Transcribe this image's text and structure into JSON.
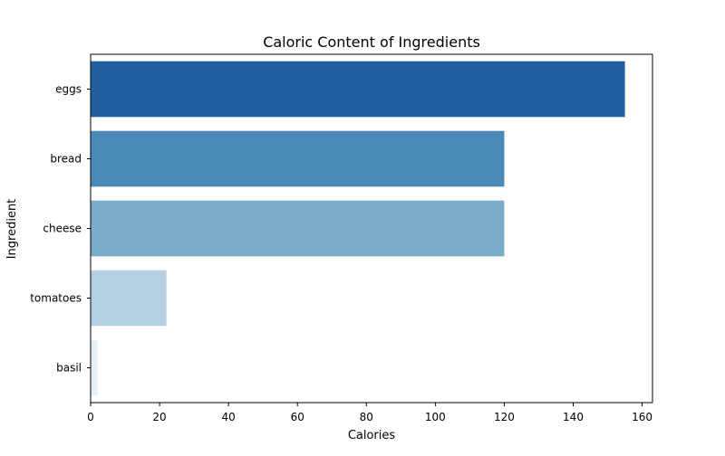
{
  "chart_data": {
    "type": "bar",
    "orientation": "horizontal",
    "title": "Caloric Content of Ingredients",
    "xlabel": "Calories",
    "ylabel": "Ingredient",
    "categories": [
      "eggs",
      "bread",
      "cheese",
      "tomatoes",
      "basil"
    ],
    "values": [
      155,
      120,
      120,
      22,
      2
    ],
    "colors": [
      "#2060a0",
      "#4a88b8",
      "#7aacca",
      "#b4d0e2",
      "#e8f1fa"
    ],
    "xlim": [
      0,
      163
    ],
    "xticks": [
      0,
      20,
      40,
      60,
      80,
      100,
      120,
      140,
      160
    ],
    "grid": false,
    "legend": "none"
  }
}
